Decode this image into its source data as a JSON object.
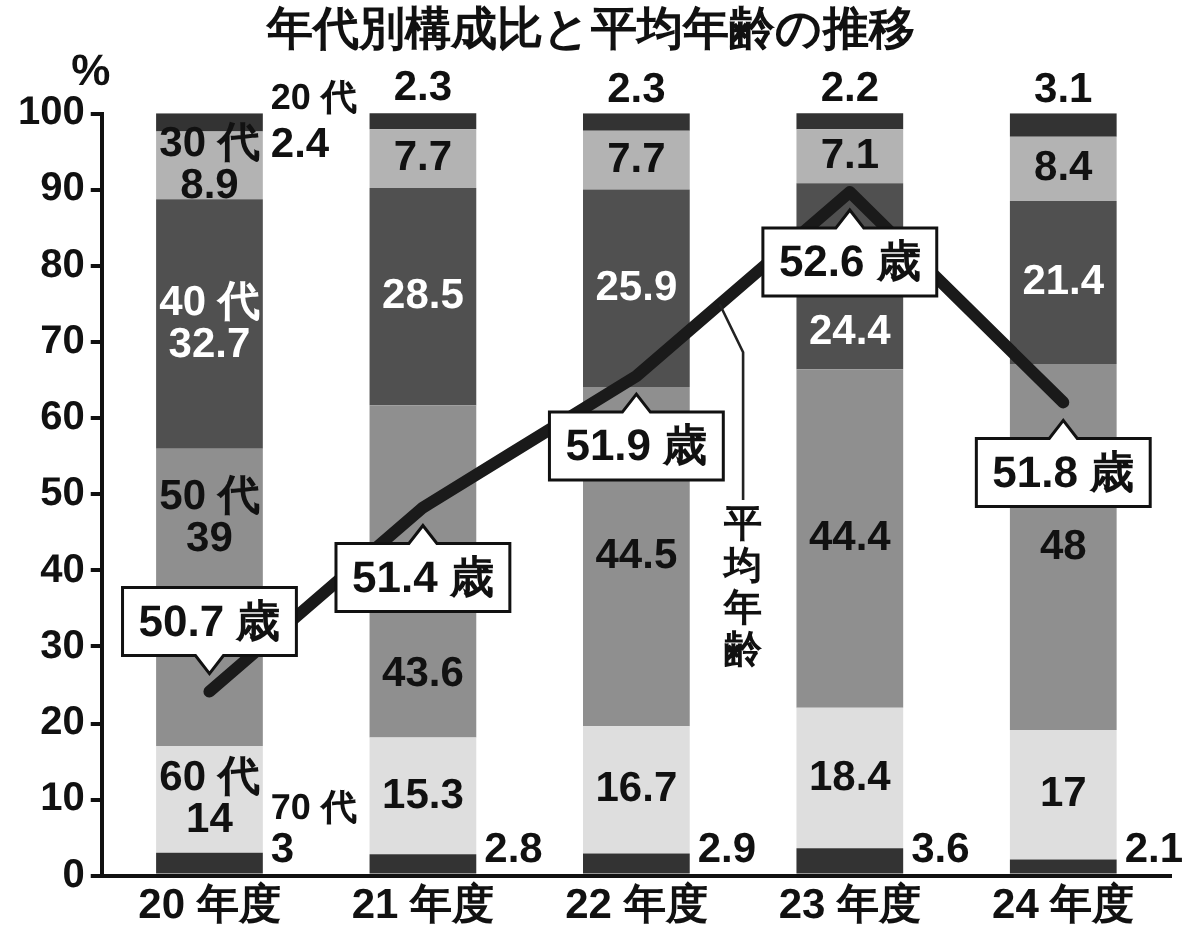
{
  "chart_data": {
    "type": "bar",
    "title": "年代別構成比と平均年齢の推移",
    "ylabel": "%",
    "stacked": true,
    "categories": [
      "20 年度",
      "21 年度",
      "22 年度",
      "23 年度",
      "24 年度"
    ],
    "series": [
      {
        "name": "70 代",
        "color": "#333333",
        "values": [
          3,
          2.8,
          2.9,
          3.6,
          2.1
        ],
        "value_labels": [
          "3",
          "2.8",
          "2.9",
          "3.6",
          "2.1"
        ]
      },
      {
        "name": "60 代",
        "color": "#dedede",
        "values": [
          14,
          15.3,
          16.7,
          18.4,
          17
        ],
        "value_labels": [
          "14",
          "15.3",
          "16.7",
          "18.4",
          "17"
        ]
      },
      {
        "name": "50 代",
        "color": "#8f8f8f",
        "values": [
          39,
          43.6,
          44.5,
          44.4,
          48
        ],
        "value_labels": [
          "39",
          "43.6",
          "44.5",
          "44.4",
          "48"
        ]
      },
      {
        "name": "40 代",
        "color": "#505050",
        "values": [
          32.7,
          28.5,
          25.9,
          24.4,
          21.4
        ],
        "value_labels": [
          "32.7",
          "28.5",
          "25.9",
          "24.4",
          "21.4"
        ]
      },
      {
        "name": "30 代",
        "color": "#b3b3b3",
        "values": [
          8.9,
          7.7,
          7.7,
          7.1,
          8.4
        ],
        "value_labels": [
          "8.9",
          "7.7",
          "7.7",
          "7.1",
          "8.4"
        ]
      },
      {
        "name": "20 代",
        "color": "#333333",
        "values": [
          2.4,
          2.3,
          2.3,
          2.2,
          3.1
        ],
        "value_labels": [
          "2.4",
          "2.3",
          "2.3",
          "2.2",
          "3.1"
        ]
      },
      {
        "name": "平均年齢",
        "type": "line",
        "axis": "y2",
        "color": "#1a1a1a",
        "values": [
          50.7,
          51.4,
          51.9,
          52.6,
          51.8
        ],
        "value_labels": [
          "50.7 歳",
          "51.4 歳",
          "51.9 歳",
          "52.6 歳",
          "51.8 歳"
        ]
      }
    ],
    "ylim": [
      0,
      100
    ],
    "yticks": [
      0,
      10,
      20,
      30,
      40,
      50,
      60,
      70,
      80,
      90,
      100
    ],
    "y2lim": [
      50,
      52.9
    ]
  }
}
